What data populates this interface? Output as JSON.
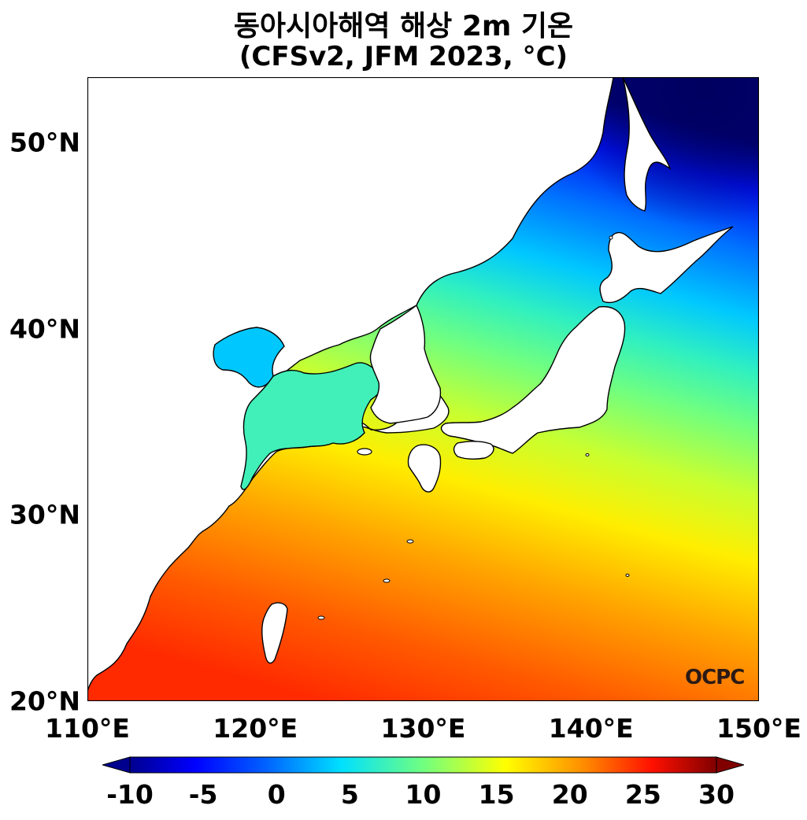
{
  "title": {
    "line1": "동아시아해역 해상 2m 기온",
    "line2": "(CFSv2, JFM 2023, °C)"
  },
  "map": {
    "lon_range": [
      110,
      150
    ],
    "lat_range": [
      20,
      53.5
    ],
    "lat_ticks": [
      {
        "value": 50,
        "label": "50°N"
      },
      {
        "value": 40,
        "label": "40°N"
      },
      {
        "value": 30,
        "label": "30°N"
      },
      {
        "value": 20,
        "label": "20°N"
      }
    ],
    "lon_ticks": [
      {
        "value": 110,
        "label": "110°E"
      },
      {
        "value": 120,
        "label": "120°E"
      },
      {
        "value": 130,
        "label": "130°E"
      },
      {
        "value": 140,
        "label": "140°E"
      },
      {
        "value": 150,
        "label": "150°E"
      }
    ],
    "land_color": "#ffffff",
    "coastline_color": "#000000"
  },
  "colorbar": {
    "min": -10,
    "max": 30,
    "extend": "both",
    "ticks": [
      "-10",
      "-5",
      "0",
      "5",
      "10",
      "15",
      "20",
      "25",
      "30"
    ],
    "colormap": "jet"
  },
  "logo": {
    "text": "OCPC"
  }
}
